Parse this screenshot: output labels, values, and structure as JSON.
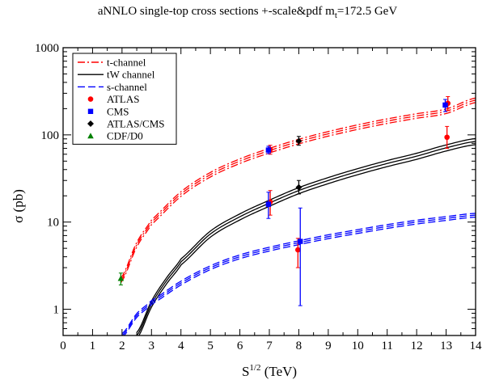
{
  "chart_data": {
    "type": "line",
    "title": "aNNLO single-top cross sections  +-scale&pdf    m",
    "title_mt_sub": "t",
    "title_tail": "=172.5 GeV",
    "xlabel": "S",
    "xlabel_sup": "1/2",
    "xlabel_unit": " (TeV)",
    "ylabel": "σ (pb)",
    "xlim": [
      0,
      14
    ],
    "ylim": [
      0.5,
      1000
    ],
    "yscale": "log",
    "x_ticks": [
      "0",
      "1",
      "2",
      "3",
      "4",
      "5",
      "6",
      "7",
      "8",
      "9",
      "10",
      "11",
      "12",
      "13",
      "14"
    ],
    "y_ticks": [
      {
        "value": 1,
        "label": "1"
      },
      {
        "value": 10,
        "label": "10"
      },
      {
        "value": 100,
        "label": "100"
      },
      {
        "value": 1000,
        "label": "1000"
      }
    ],
    "legend_position": "top-left",
    "curves": [
      {
        "name": "t-channel",
        "color": "#ff0000",
        "style": "dash-dot",
        "x": [
          1.96,
          2.5,
          3,
          4,
          5,
          6,
          7,
          8,
          9,
          10,
          11,
          12,
          13,
          14
        ],
        "central": [
          2.15,
          5.5,
          10,
          21,
          35,
          50,
          66,
          84,
          103,
          123,
          144,
          165,
          187,
          250
        ],
        "band": 0.06
      },
      {
        "name": "tW channel",
        "color": "#000000",
        "style": "solid",
        "x": [
          2.5,
          3,
          3.5,
          4,
          5,
          6,
          7,
          8,
          9,
          10,
          11,
          12,
          13,
          14
        ],
        "central": [
          0.5,
          1.15,
          2.1,
          3.5,
          7.3,
          11.5,
          16.5,
          23,
          30,
          38,
          47,
          57,
          71,
          84
        ],
        "band": 0.08
      },
      {
        "name": "s-channel",
        "color": "#0000ff",
        "style": "dashed",
        "x": [
          2,
          2.5,
          3,
          4,
          5,
          6,
          7,
          8,
          9,
          10,
          11,
          12,
          13,
          14
        ],
        "central": [
          0.5,
          0.85,
          1.2,
          2.0,
          3.0,
          4.0,
          4.9,
          5.8,
          6.8,
          7.8,
          8.9,
          10.0,
          11.0,
          12.0
        ],
        "band": 0.05
      }
    ],
    "measurements": [
      {
        "series": "ATLAS",
        "color": "#ff0000",
        "marker": "circle",
        "x": 7.03,
        "y": 17,
        "lo": 12,
        "hi": 23
      },
      {
        "series": "CMS",
        "color": "#0000ff",
        "marker": "square",
        "x": 6.97,
        "y": 16,
        "lo": 11,
        "hi": 22
      },
      {
        "series": "ATLAS",
        "color": "#ff0000",
        "marker": "circle",
        "x": 7.03,
        "y": 68,
        "lo": 60,
        "hi": 76
      },
      {
        "series": "CMS",
        "color": "#0000ff",
        "marker": "square",
        "x": 6.97,
        "y": 67,
        "lo": 61,
        "hi": 74
      },
      {
        "series": "ATLAS/CMS",
        "color": "#000000",
        "marker": "diamond",
        "x": 8.0,
        "y": 85,
        "lo": 76,
        "hi": 96
      },
      {
        "series": "ATLAS/CMS",
        "color": "#000000",
        "marker": "diamond",
        "x": 8.0,
        "y": 25,
        "lo": 21,
        "hi": 30
      },
      {
        "series": "ATLAS",
        "color": "#ff0000",
        "marker": "circle",
        "x": 7.97,
        "y": 4.8,
        "lo": 3.0,
        "hi": 6.5
      },
      {
        "series": "CMS",
        "color": "#0000ff",
        "marker": "square",
        "x": 8.05,
        "y": 6.0,
        "lo": 1.1,
        "hi": 14.5
      },
      {
        "series": "ATLAS",
        "color": "#ff0000",
        "marker": "circle",
        "x": 13.03,
        "y": 94,
        "lo": 70,
        "hi": 125
      },
      {
        "series": "ATLAS",
        "color": "#ff0000",
        "marker": "circle",
        "x": 13.06,
        "y": 230,
        "lo": 190,
        "hi": 275
      },
      {
        "series": "CMS",
        "color": "#0000ff",
        "marker": "square",
        "x": 12.97,
        "y": 220,
        "lo": 185,
        "hi": 255
      },
      {
        "series": "CDF/D0",
        "color": "#008000",
        "marker": "triangle",
        "x": 1.96,
        "y": 2.25,
        "lo": 1.9,
        "hi": 2.6
      }
    ],
    "legend": [
      {
        "label": "t-channel",
        "kind": "line",
        "color": "#ff0000",
        "style": "dash-dot"
      },
      {
        "label": "tW channel",
        "kind": "line",
        "color": "#000000",
        "style": "solid"
      },
      {
        "label": "s-channel",
        "kind": "line",
        "color": "#0000ff",
        "style": "dashed"
      },
      {
        "label": "ATLAS",
        "kind": "marker",
        "color": "#ff0000",
        "marker": "circle"
      },
      {
        "label": "CMS",
        "kind": "marker",
        "color": "#0000ff",
        "marker": "square"
      },
      {
        "label": "ATLAS/CMS",
        "kind": "marker",
        "color": "#000000",
        "marker": "diamond"
      },
      {
        "label": "CDF/D0",
        "kind": "marker",
        "color": "#008000",
        "marker": "triangle"
      }
    ]
  }
}
